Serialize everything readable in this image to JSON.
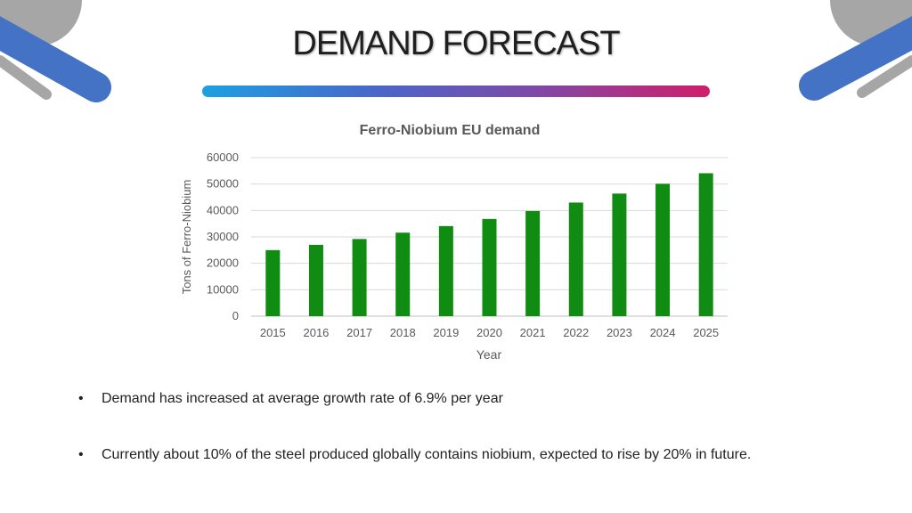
{
  "slide": {
    "title": "DEMAND FORECAST"
  },
  "bullets": [
    "Demand has increased at average  growth rate of  6.9% per year",
    "Currently about 10% of the steel produced globally contains niobium, expected to rise by 20% in future."
  ],
  "colors": {
    "bar": "#118c12",
    "decor_grey": "#a6a6a6",
    "decor_blue": "#4472c4"
  },
  "chart_data": {
    "type": "bar",
    "title": "Ferro-Niobium EU demand",
    "xlabel": "Year",
    "ylabel": "Tons of Ferro-Niobium",
    "categories": [
      "2015",
      "2016",
      "2017",
      "2018",
      "2019",
      "2020",
      "2021",
      "2022",
      "2023",
      "2024",
      "2025"
    ],
    "values": [
      25000,
      27000,
      29200,
      31600,
      34100,
      36800,
      39800,
      43000,
      46400,
      50100,
      54100
    ],
    "ylim": [
      0,
      60000
    ],
    "yticks": [
      0,
      10000,
      20000,
      30000,
      40000,
      50000,
      60000
    ],
    "grid": true,
    "legend": "none"
  }
}
